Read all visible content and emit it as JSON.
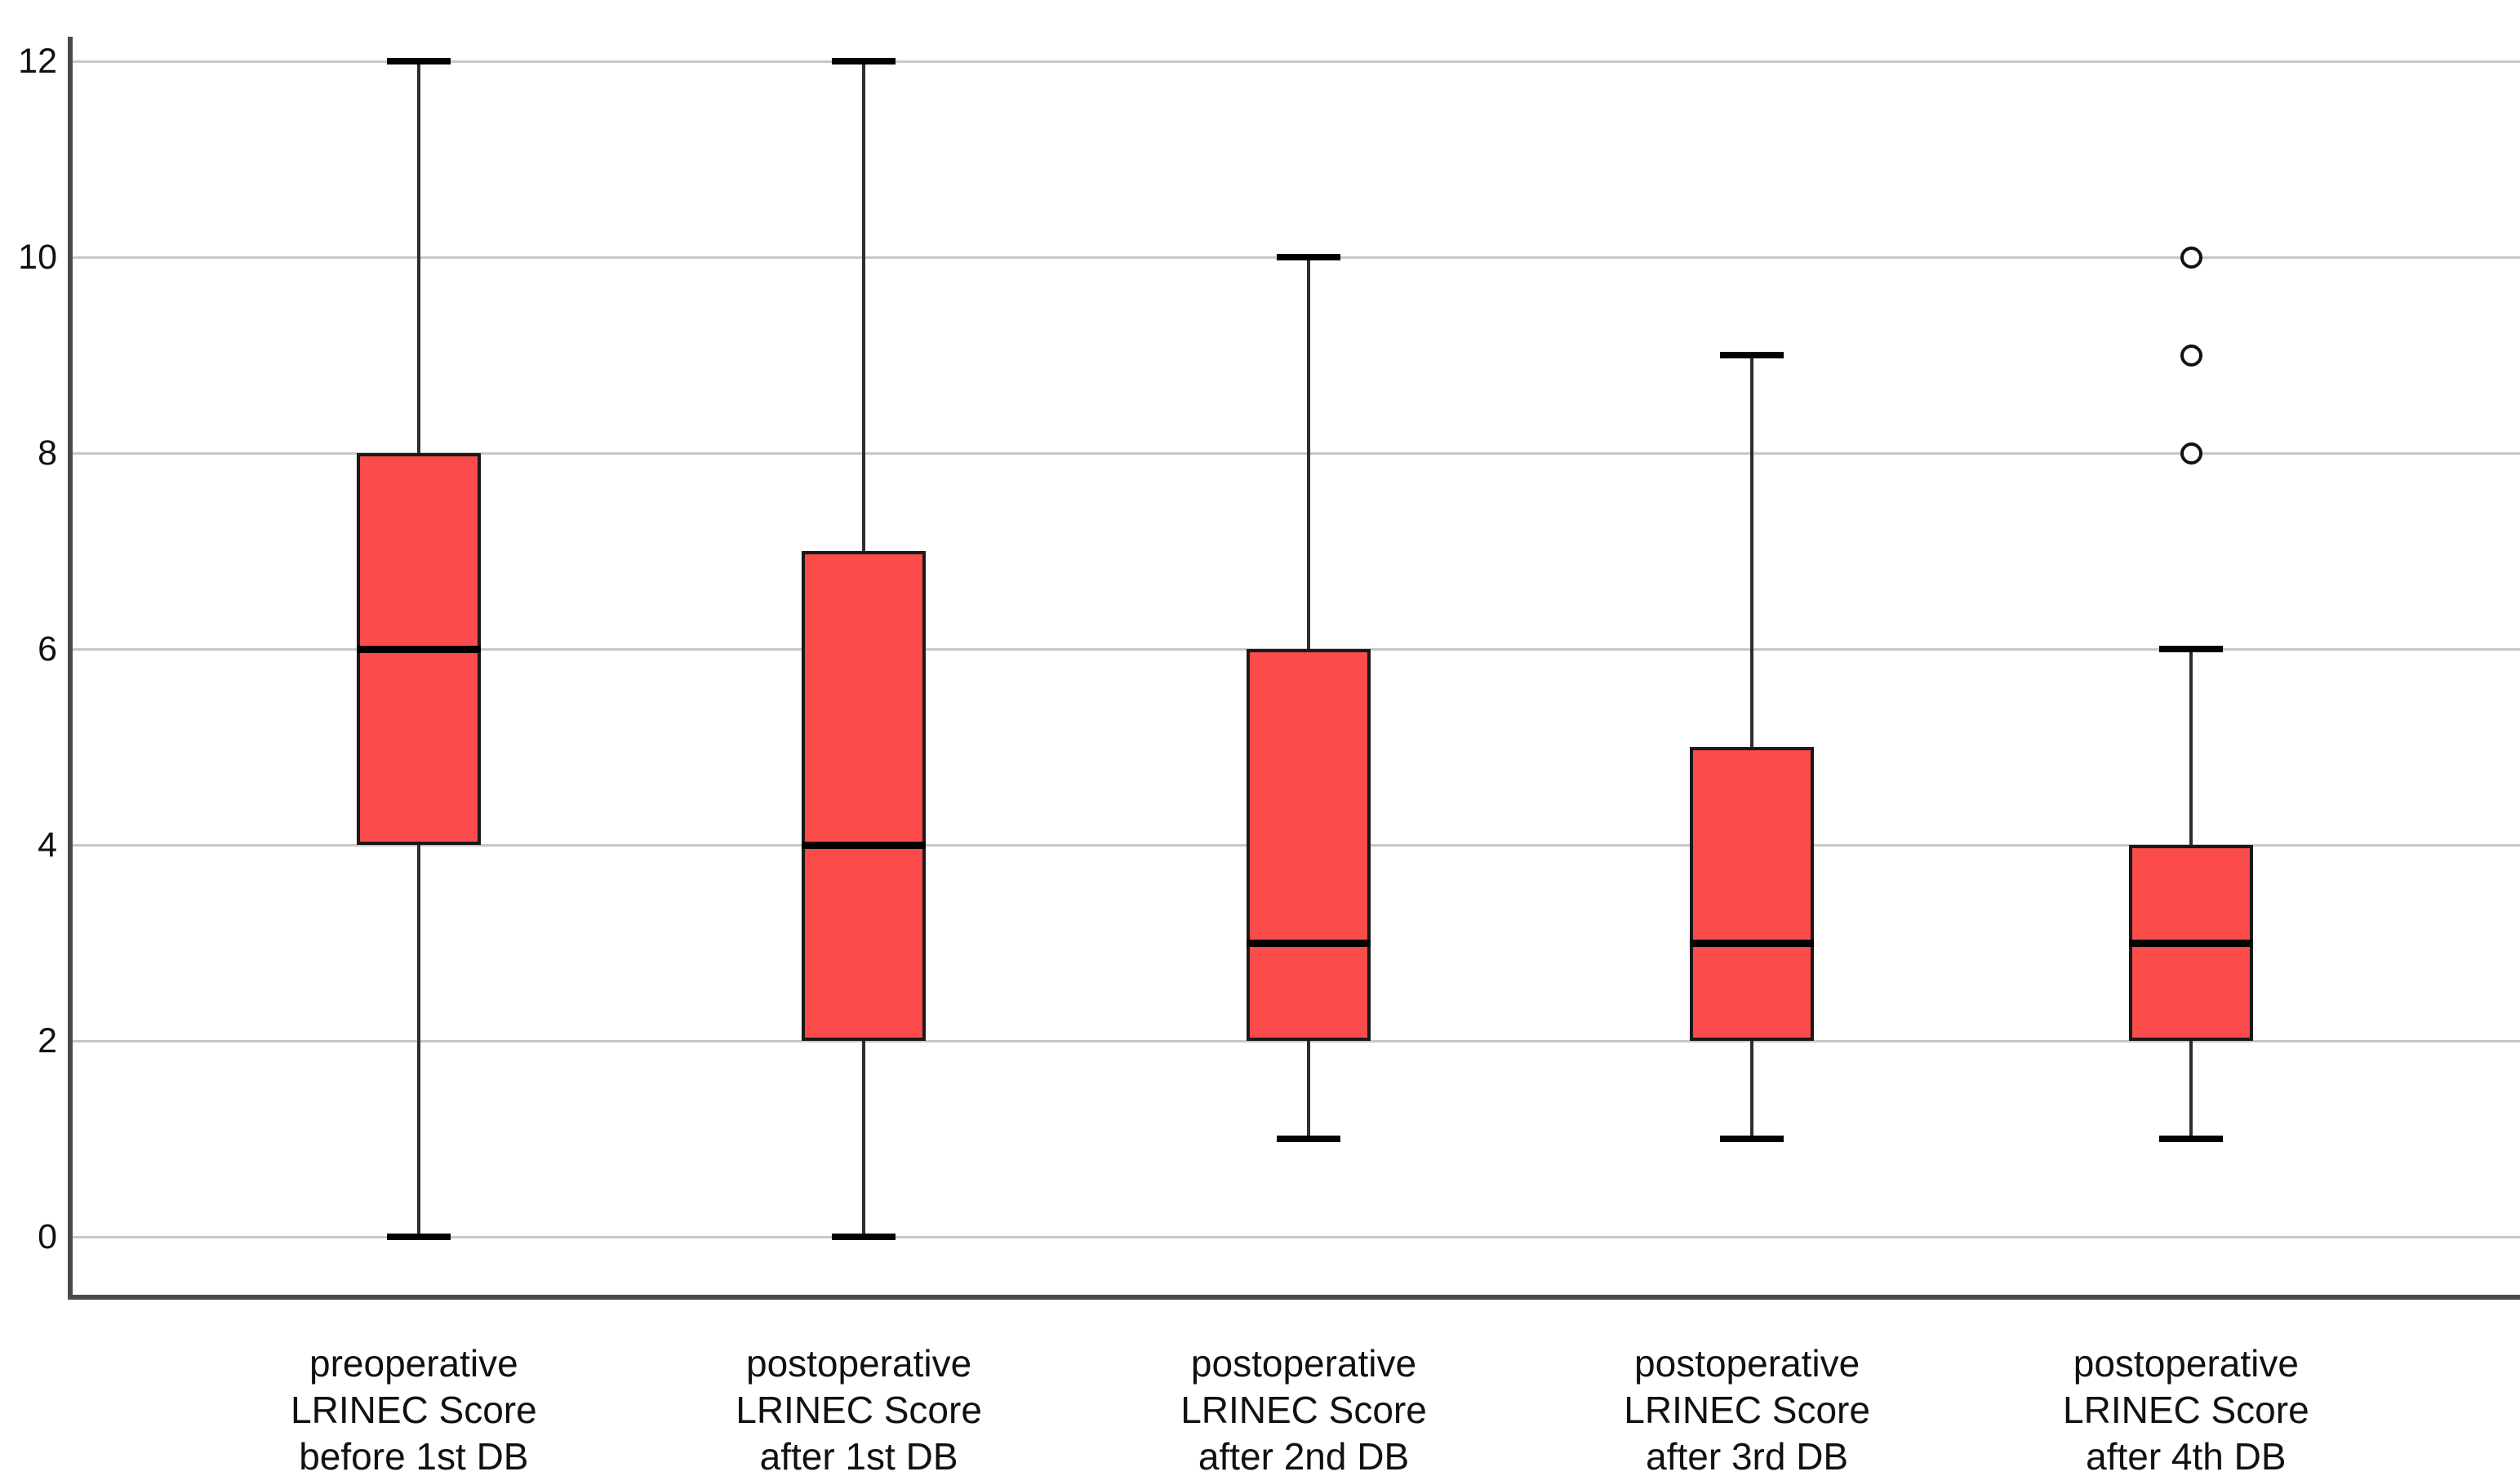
{
  "chart_data": {
    "type": "box",
    "title": "",
    "xlabel": "",
    "ylabel": "",
    "legend": "none",
    "y_axis": {
      "ticks": [
        0,
        2,
        4,
        6,
        8,
        10,
        12
      ],
      "range": [
        -0.64,
        12.56
      ],
      "grid": true
    },
    "categories": [
      {
        "label_lines": [
          "preoperative",
          "LRINEC Score",
          "before 1st DB"
        ],
        "whisker_min": 0,
        "q1": 4,
        "median": 6,
        "q3": 8,
        "whisker_max": 12,
        "outliers": []
      },
      {
        "label_lines": [
          "postoperative",
          "LRINEC Score",
          "after 1st DB"
        ],
        "whisker_min": 0,
        "q1": 2,
        "median": 4,
        "q3": 7,
        "whisker_max": 12,
        "outliers": []
      },
      {
        "label_lines": [
          "postoperative",
          "LRINEC Score",
          "after 2nd DB"
        ],
        "whisker_min": 1,
        "q1": 2,
        "median": 3,
        "q3": 6,
        "whisker_max": 10,
        "outliers": []
      },
      {
        "label_lines": [
          "postoperative",
          "LRINEC Score",
          "after 3rd DB"
        ],
        "whisker_min": 1,
        "q1": 2,
        "median": 3,
        "q3": 5,
        "whisker_max": 9,
        "outliers": []
      },
      {
        "label_lines": [
          "postoperative",
          "LRINEC Score",
          "after 4th DB"
        ],
        "whisker_min": 1,
        "q1": 2,
        "median": 3,
        "q3": 4,
        "whisker_max": 6,
        "outliers": [
          8,
          9,
          10
        ]
      }
    ],
    "colors": {
      "box_fill": "#fb4b4b",
      "box_border": "#1a1a1a",
      "median": "#000000",
      "whisker": "#2e2e2e",
      "gridline": "#c8c8c8",
      "axis": "#4a4a4a",
      "text": "#111111",
      "background": "#ffffff"
    }
  }
}
